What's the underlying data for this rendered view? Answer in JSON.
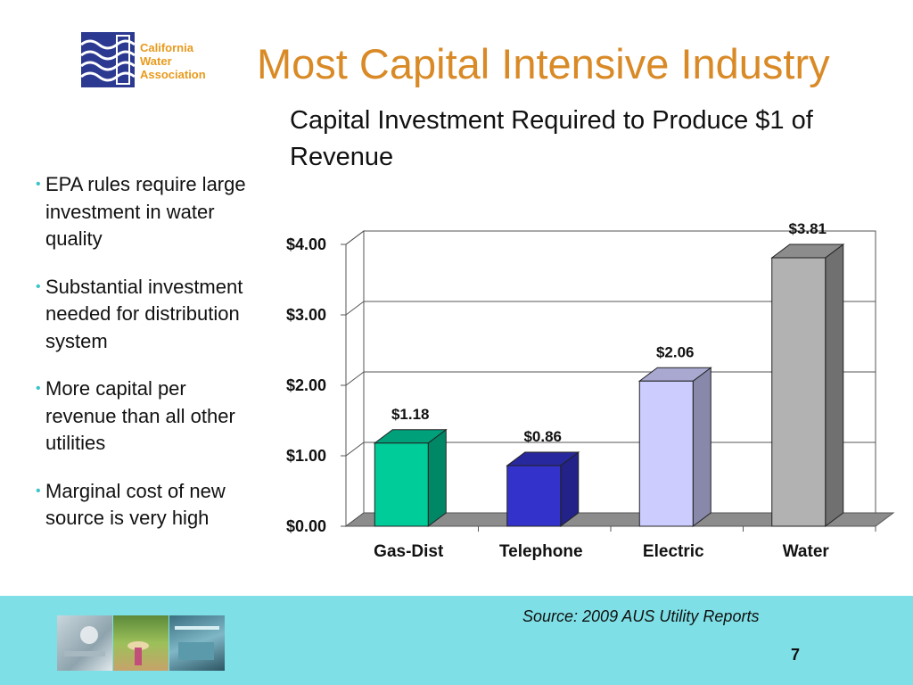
{
  "logo": {
    "lines": [
      "California",
      "Water",
      "Association"
    ]
  },
  "slide": {
    "title": "Most Capital Intensive Industry",
    "bullets": [
      " EPA rules require large investment in water quality",
      "Substantial investment needed for distribution system",
      "More capital per revenue than all other utilities",
      "Marginal cost of new source is very high"
    ],
    "source": "Source: 2009 AUS Utility Reports",
    "page_number": "7"
  },
  "chart_data": {
    "type": "bar",
    "title": "Capital Investment Required to Produce $1 of Revenue",
    "categories": [
      "Gas-Dist",
      "Telephone",
      "Electric",
      "Water"
    ],
    "values": [
      1.18,
      0.86,
      2.06,
      3.81
    ],
    "data_labels": [
      "$1.18",
      "$0.86",
      "$2.06",
      "$3.81"
    ],
    "ylim": [
      0,
      4
    ],
    "yticks": [
      0,
      1,
      2,
      3,
      4
    ],
    "ytick_labels": [
      "$0.00",
      "$1.00",
      "$2.00",
      "$3.00",
      "$4.00"
    ],
    "grid": true,
    "style": "3d",
    "colors": [
      "#00cc99",
      "#3333cc",
      "#ccccff",
      "#b2b2b2"
    ],
    "side_colors": [
      "#008866",
      "#222288",
      "#8888aa",
      "#707070"
    ],
    "top_colors": [
      "#00a07a",
      "#28289e",
      "#a8a8d0",
      "#8c8c8c"
    ]
  },
  "colors": {
    "title": "#d98a26",
    "footer": "#7ee0e6",
    "bullet": "#3cc4c8"
  }
}
